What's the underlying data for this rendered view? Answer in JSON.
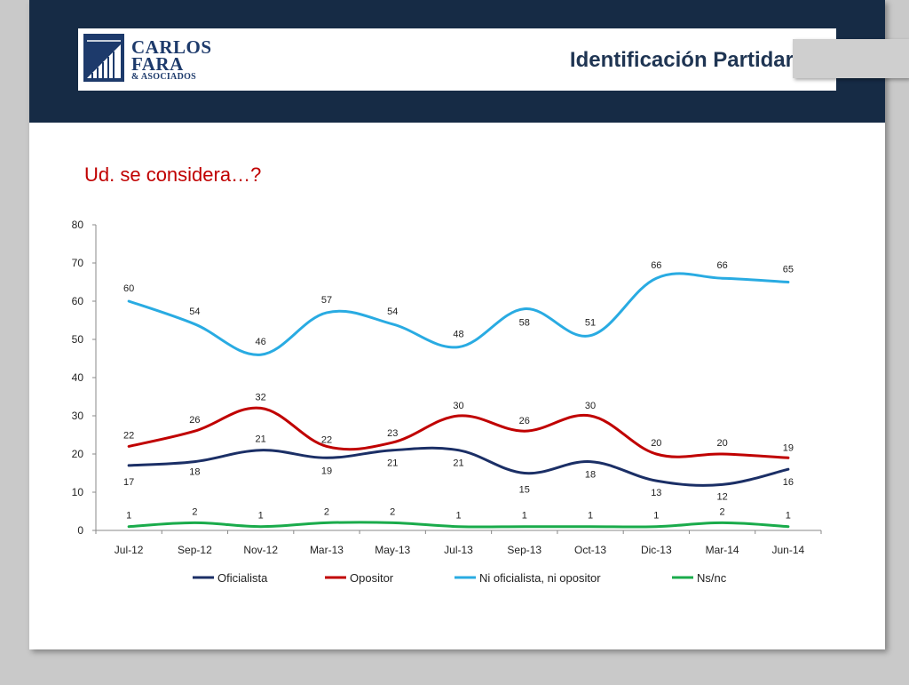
{
  "header": {
    "logo": {
      "line1": "CARLOS",
      "line2": "FARA",
      "line3": "& ASOCIADOS"
    },
    "title": "Identificación Partidaria",
    "band_color": "#162b45"
  },
  "question": "Ud. se considera…?",
  "chart_data": {
    "type": "line",
    "categories": [
      "Jul-12",
      "Sep-12",
      "Nov-12",
      "Mar-13",
      "May-13",
      "Jul-13",
      "Sep-13",
      "Oct-13",
      "Dic-13",
      "Mar-14",
      "Jun-14"
    ],
    "ylim": [
      0,
      80
    ],
    "yticks": [
      "0",
      "10",
      "20",
      "30",
      "40",
      "50",
      "60",
      "70",
      "80"
    ],
    "grid": false,
    "legend_position": "bottom",
    "series": [
      {
        "name": "Oficialista",
        "color": "#1b2f66",
        "values": [
          17,
          18,
          21,
          19,
          21,
          21,
          15,
          18,
          13,
          12,
          16
        ]
      },
      {
        "name": "Opositor",
        "color": "#c00000",
        "values": [
          22,
          26,
          32,
          22,
          23,
          30,
          26,
          30,
          20,
          20,
          19
        ]
      },
      {
        "name": "Ni oficialista, ni opositor",
        "color": "#29abe2",
        "values": [
          60,
          54,
          46,
          57,
          54,
          48,
          58,
          51,
          66,
          66,
          65
        ]
      },
      {
        "name": "Ns/nc",
        "color": "#1aab4b",
        "values": [
          1,
          2,
          1,
          2,
          2,
          1,
          1,
          1,
          1,
          2,
          1
        ]
      }
    ]
  }
}
